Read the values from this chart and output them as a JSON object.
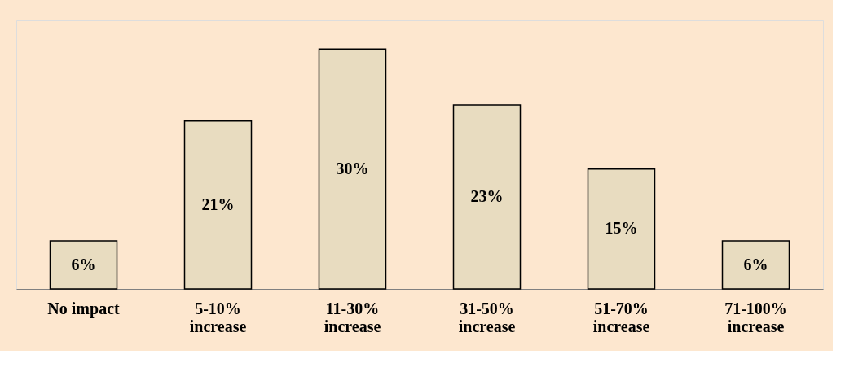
{
  "chart_data": {
    "type": "bar",
    "categories": [
      "No impact",
      "5-10%\nincrease",
      "11-30%\nincrease",
      "31-50%\nincrease",
      "51-70%\nincrease",
      "71-100%\nincrease"
    ],
    "values": [
      6,
      21,
      30,
      23,
      15,
      6
    ],
    "value_labels": [
      "6%",
      "21%",
      "30%",
      "23%",
      "15%",
      "6%"
    ],
    "color": "#e8dcc0",
    "grid": false
  }
}
